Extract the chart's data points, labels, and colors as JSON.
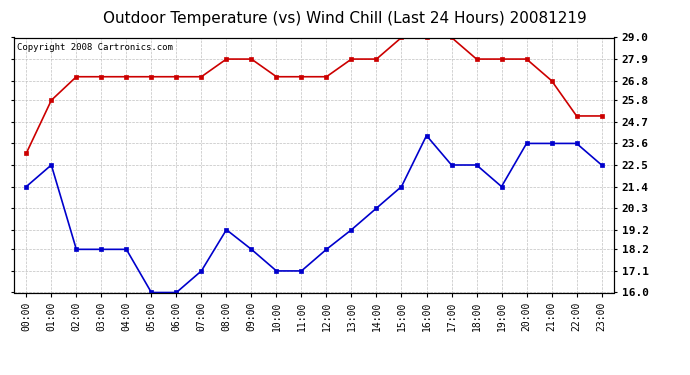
{
  "title": "Outdoor Temperature (vs) Wind Chill (Last 24 Hours) 20081219",
  "copyright_text": "Copyright 2008 Cartronics.com",
  "x_labels": [
    "00:00",
    "01:00",
    "02:00",
    "03:00",
    "04:00",
    "05:00",
    "06:00",
    "07:00",
    "08:00",
    "09:00",
    "10:00",
    "11:00",
    "12:00",
    "13:00",
    "14:00",
    "15:00",
    "16:00",
    "17:00",
    "18:00",
    "19:00",
    "20:00",
    "21:00",
    "22:00",
    "23:00"
  ],
  "red_data": [
    23.1,
    25.8,
    27.0,
    27.0,
    27.0,
    27.0,
    27.0,
    27.0,
    27.9,
    27.9,
    27.0,
    27.0,
    27.0,
    27.9,
    27.9,
    29.0,
    29.0,
    29.0,
    27.9,
    27.9,
    27.9,
    26.8,
    25.0,
    25.0
  ],
  "blue_data": [
    21.4,
    22.5,
    18.2,
    18.2,
    18.2,
    16.0,
    16.0,
    17.1,
    19.2,
    18.2,
    17.1,
    17.1,
    18.2,
    19.2,
    20.3,
    21.4,
    24.0,
    22.5,
    22.5,
    21.4,
    23.6,
    23.6,
    23.6,
    22.5
  ],
  "red_color": "#cc0000",
  "blue_color": "#0000cc",
  "yticks_right": [
    16.0,
    17.1,
    18.2,
    19.2,
    20.3,
    21.4,
    22.5,
    23.6,
    24.7,
    25.8,
    26.8,
    27.9,
    29.0
  ],
  "bg_color": "#ffffff",
  "grid_color": "#c0c0c0",
  "title_fontsize": 11,
  "tick_fontsize": 7,
  "copyright_fontsize": 6.5,
  "yaxis_fontsize": 8
}
